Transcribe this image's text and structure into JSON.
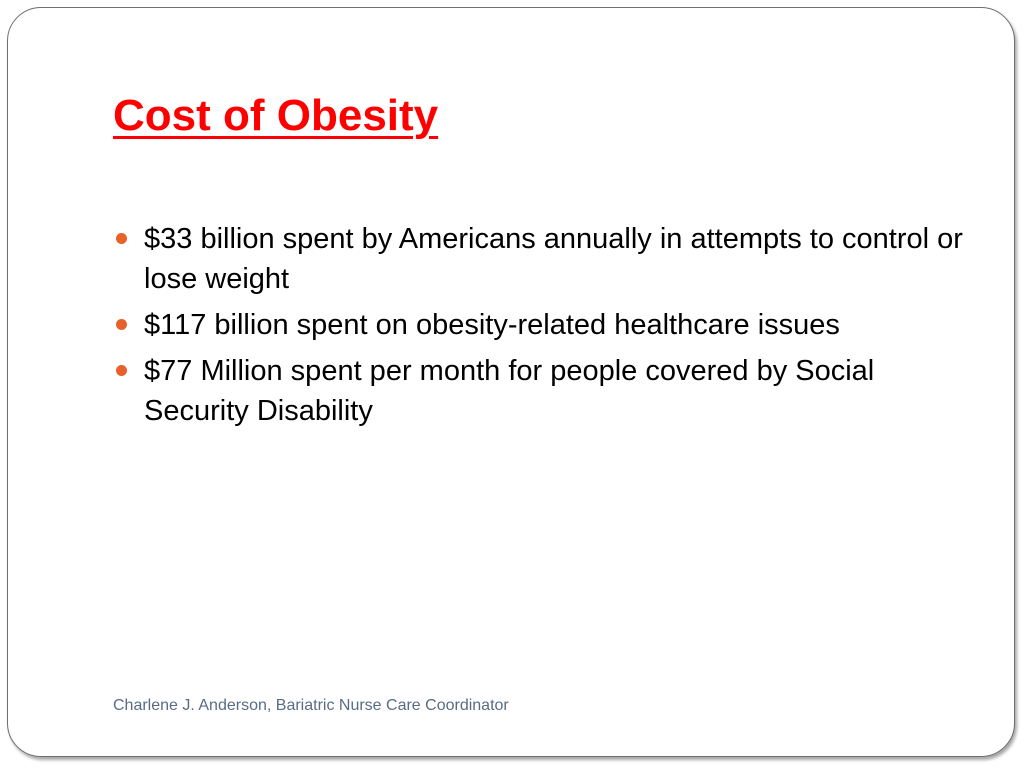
{
  "slide": {
    "title": "Cost of Obesity",
    "bullets": [
      {
        "text": "$33 billion spent by Americans annually in attempts to control or lose weight"
      },
      {
        "text": "$117 billion spent on obesity-related healthcare issues"
      },
      {
        "text": "$77 Million spent per month for people covered by Social Security Disability"
      }
    ],
    "footer": "Charlene J. Anderson, Bariatric Nurse Care Coordinator"
  },
  "colors": {
    "title": "#ff0000",
    "bullet_dot": "#e8602a",
    "body_text": "#000000",
    "footer_text": "#5a6b86",
    "frame_border": "#6f6f6f"
  },
  "icons": {
    "bullet": "filled-circle"
  }
}
